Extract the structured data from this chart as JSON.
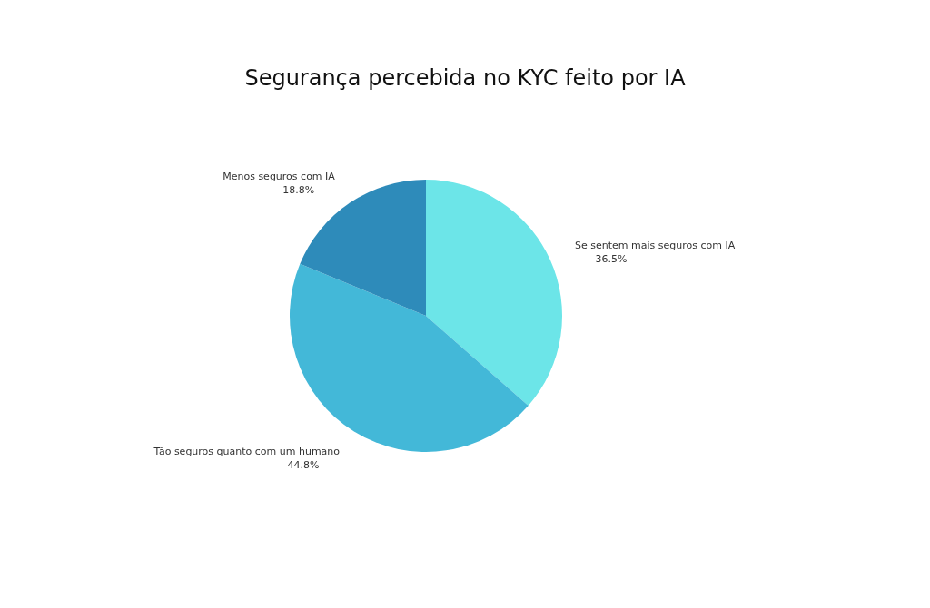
{
  "chart_data": {
    "type": "pie",
    "title": "Segurança percebida no KYC feito por IA",
    "categories": [
      "Se sentem mais seguros com IA",
      "Tão seguros quanto com um humano",
      "Menos seguros com IA"
    ],
    "values": [
      36.5,
      44.8,
      18.8
    ],
    "value_labels": [
      "36.5%",
      "44.8%",
      "18.8%"
    ],
    "colors": [
      "#6ce5e8",
      "#43b8d8",
      "#2e8bba"
    ],
    "legend": false
  }
}
